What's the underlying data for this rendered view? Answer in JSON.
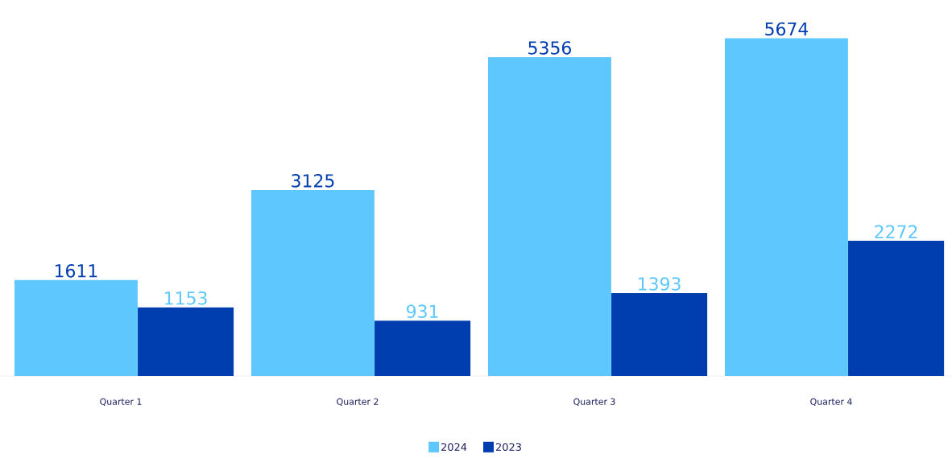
{
  "chart_data": {
    "type": "bar",
    "categories": [
      "Quarter 1",
      "Quarter 2",
      "Quarter 3",
      "Quarter 4"
    ],
    "series": [
      {
        "name": "2024",
        "color": "#5ec8fe",
        "values": [
          1611,
          3125,
          5356,
          5674
        ]
      },
      {
        "name": "2023",
        "color": "#003eb0",
        "values": [
          1153,
          931,
          1393,
          2272
        ]
      }
    ],
    "data_labels": true,
    "legend": "bottom"
  }
}
